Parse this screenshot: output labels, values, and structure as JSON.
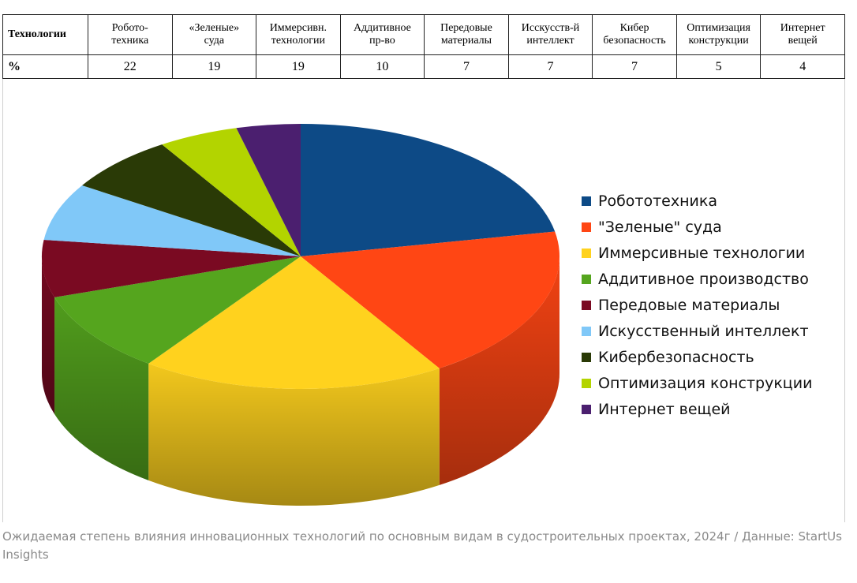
{
  "table": {
    "header_label": "Технологии",
    "value_label": "%",
    "columns": [
      {
        "line1": "Робото-",
        "line2": "техника",
        "value": "22"
      },
      {
        "line1": "«Зеленые»",
        "line2": "суда",
        "value": "19"
      },
      {
        "line1": "Иммерсивн.",
        "line2": "технологии",
        "value": "19"
      },
      {
        "line1": "Аддитивное",
        "line2": "пр-во",
        "value": "10"
      },
      {
        "line1": "Передовые",
        "line2": "материалы",
        "value": "7"
      },
      {
        "line1": "Исскусств-й",
        "line2": "интеллект",
        "value": "7"
      },
      {
        "line1": "Кибер",
        "line2": "безопасность",
        "value": "7"
      },
      {
        "line1": "Оптимизация",
        "line2": "конструкции",
        "value": "5"
      },
      {
        "line1": "Интернет",
        "line2": "вещей",
        "value": "4"
      }
    ]
  },
  "chart_data": {
    "type": "pie",
    "style": "3d",
    "legend_position": "right",
    "categories": [
      "Робототехника",
      "\"Зеленые\" суда",
      "Иммерсивные технологии",
      "Аддитивное производство",
      "Передовые материалы",
      "Искусственный интеллект",
      "Кибербезопасность",
      "Оптимизация конструкции",
      "Интернет вещей"
    ],
    "values": [
      22,
      19,
      19,
      10,
      7,
      7,
      7,
      5,
      4
    ],
    "colors": [
      "#0d4a86",
      "#ff4614",
      "#ffd21e",
      "#55a51e",
      "#7a0a22",
      "#80c8f8",
      "#2a3a06",
      "#b3d400",
      "#4b1f6f"
    ]
  },
  "caption": "Ожидаемая степень влияния инновационных технологий по основным видам в судостроительных проектах, 2024г / Данные: StartUs Insights"
}
